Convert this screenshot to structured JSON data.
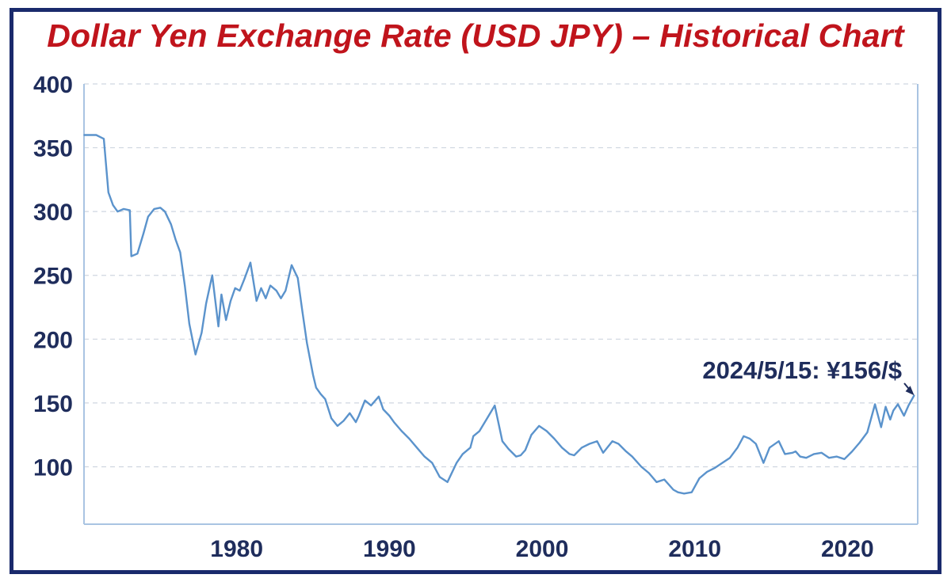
{
  "colors": {
    "title": "#c0141c",
    "frame": "#1a2a6c",
    "series": "#5b93cc",
    "grid": "#cfd6e0",
    "text": "#1f2d5c"
  },
  "chart_data": {
    "type": "line",
    "title": "Dollar Yen Exchange Rate (USD JPY) – Historical Chart",
    "xlabel": "",
    "ylabel": "",
    "xlim": [
      1970,
      2024.6
    ],
    "ylim": [
      55,
      400
    ],
    "y_ticks": [
      100,
      150,
      200,
      250,
      300,
      350,
      400
    ],
    "x_ticks": [
      1980,
      1990,
      2000,
      2010,
      2020
    ],
    "grid": "horizontal dashed",
    "annotation": {
      "text": "2024/5/15: ¥156/$",
      "x": 2024.37,
      "y": 156
    },
    "series": [
      {
        "x": [
          1970.0,
          1970.8,
          1971.3,
          1971.6,
          1971.9,
          1972.2,
          1972.6,
          1973.0,
          1973.1,
          1973.5,
          1973.9,
          1974.2,
          1974.6,
          1975.0,
          1975.3,
          1975.7,
          1976.0,
          1976.3,
          1976.6,
          1976.9,
          1977.3,
          1977.7,
          1978.0,
          1978.4,
          1978.8,
          1979.0,
          1979.3,
          1979.6,
          1979.9,
          1980.2,
          1980.5,
          1980.9,
          1981.3,
          1981.6,
          1981.9,
          1982.2,
          1982.6,
          1982.9,
          1983.2,
          1983.6,
          1984.0,
          1984.3,
          1984.6,
          1985.0,
          1985.2,
          1985.5,
          1985.8,
          1986.2,
          1986.6,
          1987.0,
          1987.4,
          1987.8,
          1988.0,
          1988.4,
          1988.8,
          1989.3,
          1989.6,
          1990.0,
          1990.3,
          1990.8,
          1991.3,
          1991.8,
          1992.3,
          1992.8,
          1993.3,
          1993.8,
          1994.4,
          1994.8,
          1995.3,
          1995.5,
          1995.9,
          1996.4,
          1996.9,
          1997.4,
          1997.8,
          1998.3,
          1998.6,
          1998.9,
          1999.3,
          1999.8,
          2000.3,
          2000.8,
          2001.3,
          2001.8,
          2002.1,
          2002.6,
          2003.1,
          2003.6,
          2004.0,
          2004.6,
          2005.0,
          2005.5,
          2005.9,
          2006.5,
          2007.0,
          2007.5,
          2008.0,
          2008.6,
          2008.9,
          2009.3,
          2009.8,
          2010.3,
          2010.8,
          2011.3,
          2011.8,
          2012.3,
          2012.8,
          2013.2,
          2013.6,
          2014.0,
          2014.5,
          2014.9,
          2015.5,
          2015.9,
          2016.4,
          2016.6,
          2016.9,
          2017.3,
          2017.8,
          2018.3,
          2018.8,
          2019.3,
          2019.8,
          2020.3,
          2020.8,
          2021.3,
          2021.8,
          2022.2,
          2022.5,
          2022.8,
          2023.0,
          2023.3,
          2023.7,
          2024.0,
          2024.37
        ],
        "values": [
          360,
          360,
          357,
          315,
          305,
          300,
          302,
          301,
          265,
          267,
          283,
          296,
          302,
          303,
          300,
          290,
          278,
          268,
          242,
          212,
          188,
          205,
          228,
          250,
          210,
          235,
          215,
          230,
          240,
          238,
          247,
          260,
          230,
          240,
          232,
          242,
          238,
          232,
          238,
          258,
          248,
          222,
          197,
          172,
          162,
          157,
          153,
          138,
          132,
          136,
          142,
          135,
          140,
          152,
          148,
          155,
          145,
          140,
          135,
          128,
          122,
          115,
          108,
          103,
          92,
          88,
          103,
          110,
          115,
          124,
          128,
          138,
          148,
          120,
          114,
          108,
          109,
          113,
          125,
          132,
          128,
          122,
          115,
          110,
          109,
          115,
          118,
          120,
          111,
          120,
          118,
          112,
          108,
          100,
          95,
          88,
          90,
          82,
          80,
          79,
          80,
          91,
          96,
          99,
          103,
          107,
          115,
          124,
          122,
          118,
          103,
          115,
          120,
          110,
          111,
          112,
          108,
          107,
          110,
          111,
          107,
          108,
          106,
          112,
          119,
          127,
          149,
          131,
          147,
          137,
          144,
          149,
          140,
          148,
          156
        ]
      }
    ]
  }
}
